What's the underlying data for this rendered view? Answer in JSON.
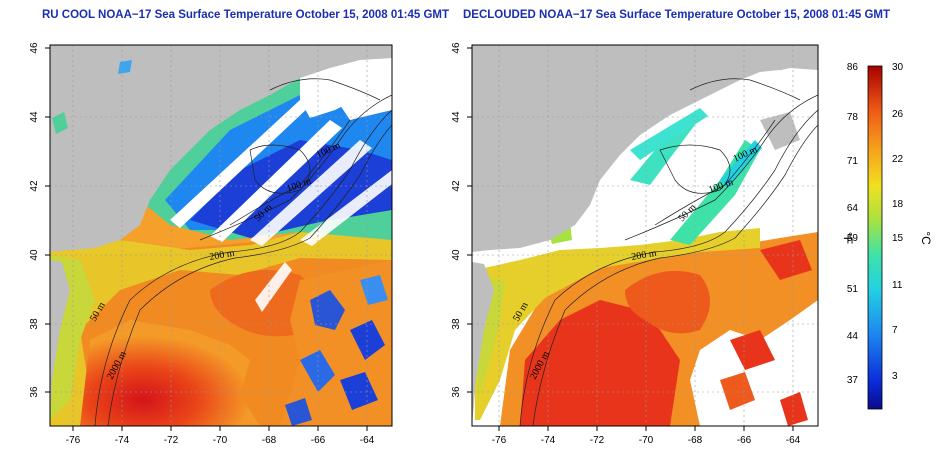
{
  "titles": {
    "left": "RU COOL NOAA−17 Sea Surface Temperature October 15, 2008 01:45 GMT",
    "right": "DECLOUDED NOAA−17 Sea Surface Temperature October 15, 2008 01:45 GMT"
  },
  "axes": {
    "lon_ticks": [
      "-76",
      "-74",
      "-72",
      "-70",
      "-68",
      "-66",
      "-64"
    ],
    "lat_ticks": [
      "36",
      "38",
      "40",
      "42",
      "44",
      "46"
    ]
  },
  "contour_labels": [
    "100 m",
    "100 m",
    "50 m",
    "200 m",
    "50 m",
    "2000 m"
  ],
  "colorbar": {
    "unit_f": "°F",
    "unit_c": "°C",
    "f_ticks": [
      "86",
      "78",
      "71",
      "64",
      "59",
      "51",
      "44",
      "37"
    ],
    "c_ticks": [
      "30",
      "26",
      "22",
      "18",
      "15",
      "11",
      "7",
      "3"
    ]
  },
  "colors": {
    "land": "#bebebe",
    "cloud_mask": "#ffffff",
    "title": "#1a2fb0",
    "warm": "#e8341a",
    "cold": "#1c3fd8"
  }
}
